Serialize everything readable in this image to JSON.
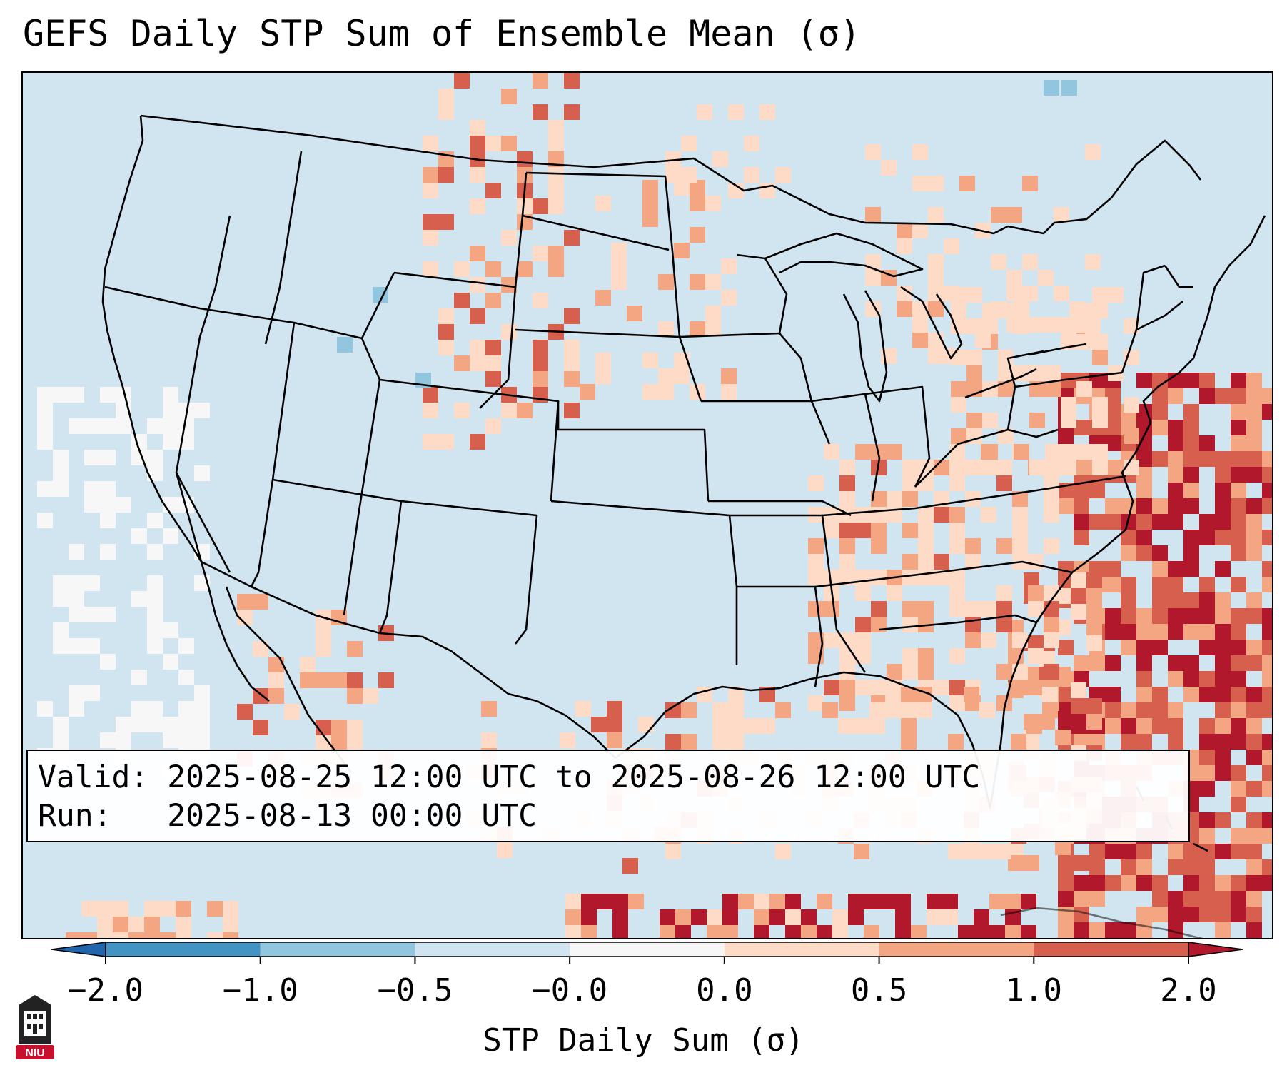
{
  "title": "GEFS Daily STP Sum of Ensemble Mean (σ)",
  "info": {
    "valid_label": "Valid:",
    "valid_value": "2025-08-25 12:00 UTC to 2025-08-26 12:00 UTC",
    "run_label": "Run:",
    "run_value": "2025-08-13 00:00 UTC"
  },
  "colorbar": {
    "label": "STP Daily Sum (σ)",
    "ticks": [
      "−2.0",
      "−1.0",
      "−0.5",
      "−0.0",
      "0.0",
      "0.5",
      "1.0",
      "2.0"
    ],
    "bins": [
      {
        "from": "−2.0",
        "to": "−1.0",
        "color": "#4393c3"
      },
      {
        "from": "−1.0",
        "to": "−0.5",
        "color": "#92c5de"
      },
      {
        "from": "−0.5",
        "to": "−0.0",
        "color": "#d1e5f0"
      },
      {
        "from": "−0.0",
        "to": "0.0",
        "color": "#f7f7f7"
      },
      {
        "from": "0.0",
        "to": "0.5",
        "color": "#fddbc7"
      },
      {
        "from": "0.5",
        "to": "1.0",
        "color": "#f4a582"
      },
      {
        "from": "1.0",
        "to": "2.0",
        "color": "#d6604d"
      }
    ],
    "extend_low_color": "#2166ac",
    "extend_high_color": "#b2182b"
  },
  "map": {
    "region": "CONUS",
    "background_color": "#d1e5f0"
  },
  "logo": {
    "text": "NIU",
    "color": "#c8102e"
  }
}
